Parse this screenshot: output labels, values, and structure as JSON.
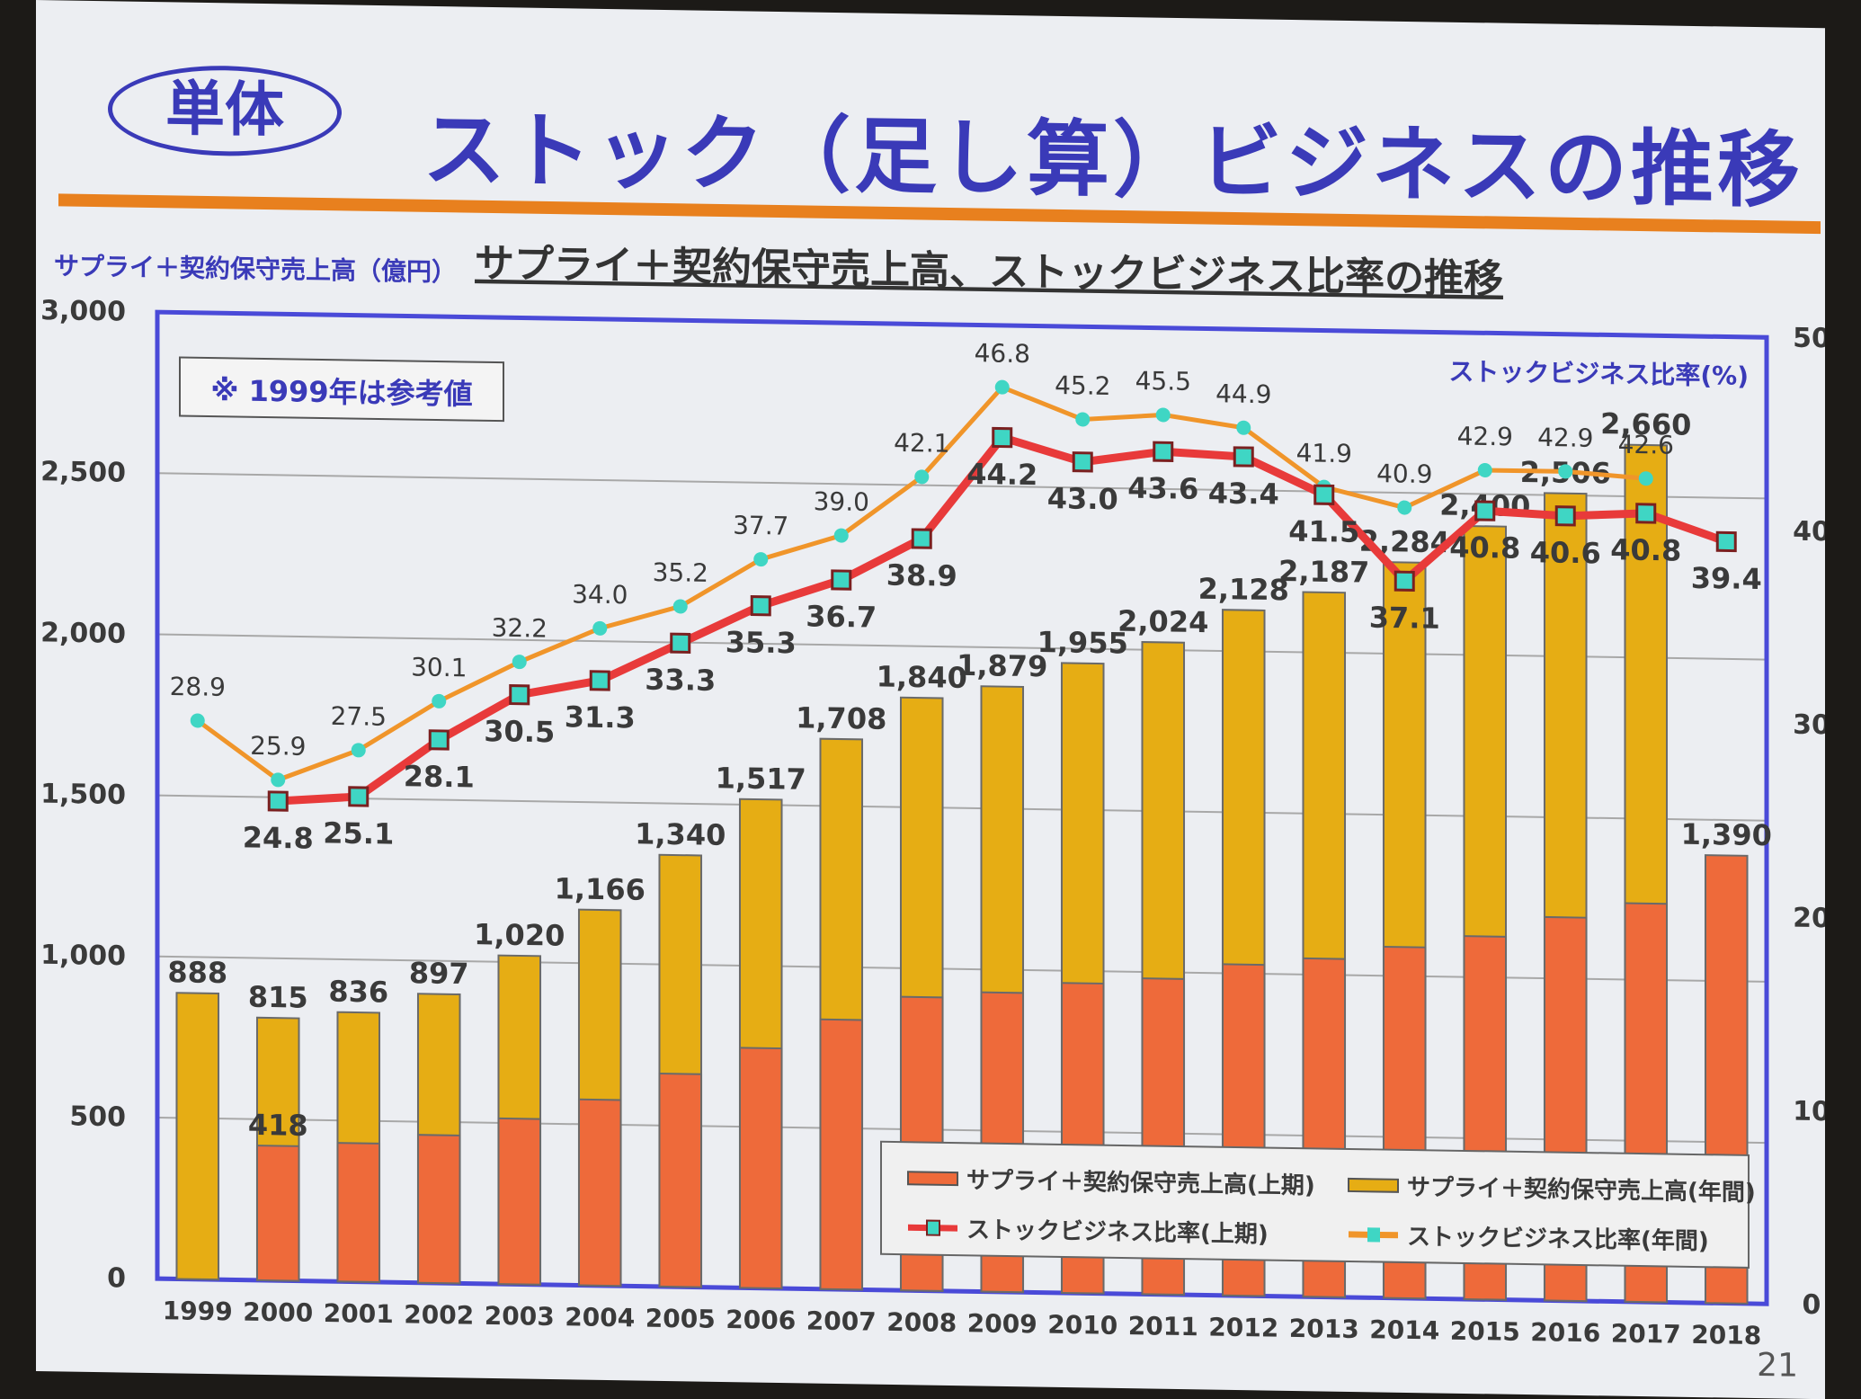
{
  "slide": {
    "badge": "単体",
    "title": "ストック（足し算）ビジネスの推移",
    "page_number": "21"
  },
  "chart_data": {
    "type": "bar",
    "title": "サプライ＋契約保守売上高、ストックビジネス比率の推移",
    "note": "※ 1999年は参考値",
    "ylabel": "サプライ＋契約保守売上高（億円）",
    "y2label": "ストックビジネス比率(%)",
    "ylim": [
      0,
      3000
    ],
    "y2lim": [
      0,
      50
    ],
    "yticks": [
      0,
      500,
      1000,
      1500,
      2000,
      2500,
      3000
    ],
    "ytick_labels": [
      "0",
      "500",
      "1,000",
      "1,500",
      "2,000",
      "2,500",
      "3,000"
    ],
    "y2ticks": [
      0,
      10,
      20,
      30,
      40,
      50
    ],
    "grid": true,
    "legend_position": "bottom-right",
    "categories": [
      "1999",
      "2000",
      "2001",
      "2002",
      "2003",
      "2004",
      "2005",
      "2006",
      "2007",
      "2008",
      "2009",
      "2010",
      "2011",
      "2012",
      "2013",
      "2014",
      "2015",
      "2016",
      "2017",
      "2018"
    ],
    "series": [
      {
        "name": "サプライ＋契約保守売上高(年間)",
        "kind": "bar",
        "color": "#e6ad14",
        "values": [
          888,
          815,
          836,
          897,
          1020,
          1166,
          1340,
          1517,
          1708,
          1840,
          1879,
          1955,
          2024,
          2128,
          2187,
          2284,
          2400,
          2506,
          2660,
          null
        ],
        "labels": [
          "888",
          "815",
          "836",
          "897",
          "1,020",
          "1,166",
          "1,340",
          "1,517",
          "1,708",
          "1,840",
          "1,879",
          "1,955",
          "2,024",
          "2,128",
          "2,187",
          "2,284",
          "2,400",
          "2,506",
          "2,660",
          ""
        ]
      },
      {
        "name": "サプライ＋契約保守売上高(上期)",
        "kind": "bar",
        "color": "#ee6a3a",
        "values": [
          null,
          418,
          430,
          459,
          514,
          577,
          661,
          745,
          837,
          911,
          929,
          962,
          980,
          1028,
          1050,
          1090,
          1127,
          1190,
          1237,
          1390
        ],
        "labels": [
          "",
          "418",
          "",
          "",
          "",
          "",
          "",
          "",
          "",
          "",
          "",
          "",
          "",
          "",
          "",
          "",
          "",
          "",
          "",
          "1,390"
        ]
      },
      {
        "name": "ストックビジネス比率(上期)",
        "kind": "line",
        "axis": "right",
        "color": "#e83a3a",
        "values": [
          null,
          24.8,
          25.1,
          28.1,
          30.5,
          31.3,
          33.3,
          35.3,
          36.7,
          38.9,
          44.2,
          43.0,
          43.6,
          43.4,
          41.5,
          37.1,
          40.8,
          40.6,
          40.8,
          39.4
        ],
        "labels": [
          "",
          "24.8",
          "25.1",
          "28.1",
          "30.5",
          "31.3",
          "33.3",
          "35.3",
          "36.7",
          "38.9",
          "44.2",
          "43.0",
          "43.6",
          "43.4",
          "41.5",
          "37.1",
          "40.8",
          "40.6",
          "40.8",
          "39.4"
        ]
      },
      {
        "name": "ストックビジネス比率(年間)",
        "kind": "line",
        "axis": "right",
        "color": "#f0952a",
        "values": [
          28.9,
          25.9,
          27.5,
          30.1,
          32.2,
          34.0,
          35.2,
          37.7,
          39.0,
          42.1,
          46.8,
          45.2,
          45.5,
          44.9,
          41.9,
          40.9,
          42.9,
          42.9,
          42.6,
          null
        ],
        "labels": [
          "28.9",
          "25.9",
          "27.5",
          "30.1",
          "32.2",
          "34.0",
          "35.2",
          "37.7",
          "39.0",
          "42.1",
          "46.8",
          "45.2",
          "45.5",
          "44.9",
          "41.9",
          "40.9",
          "42.9",
          "42.9",
          "42.6",
          ""
        ]
      }
    ]
  }
}
